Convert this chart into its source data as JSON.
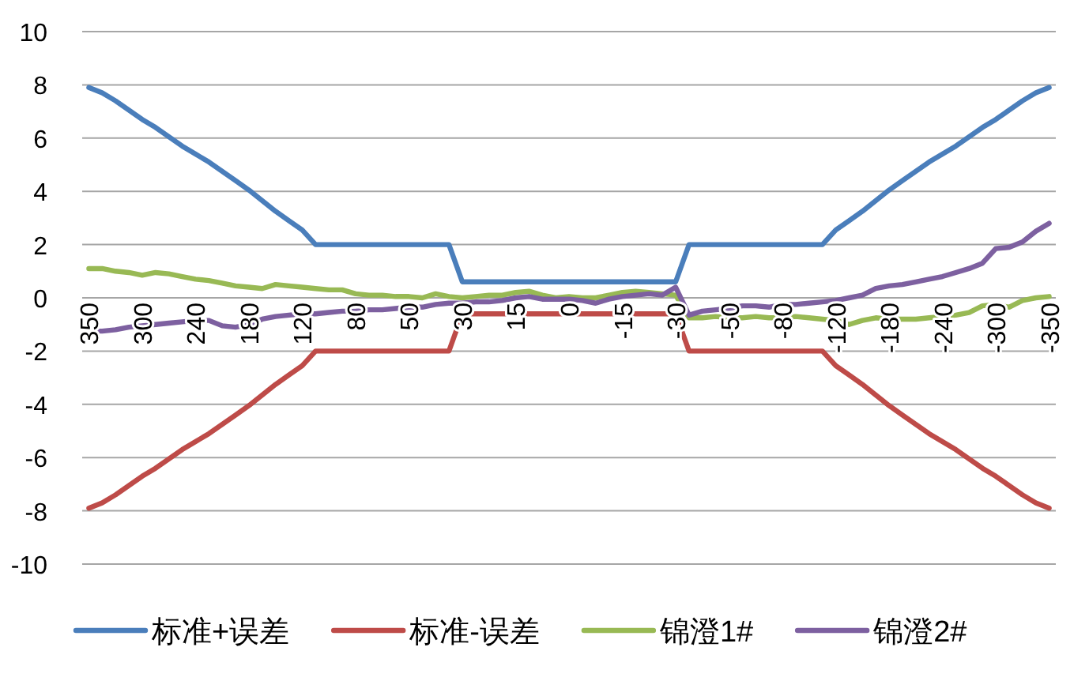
{
  "chart_data": {
    "type": "line",
    "categories": [
      "350",
      null,
      null,
      null,
      "300",
      null,
      null,
      null,
      "240",
      null,
      null,
      null,
      "180",
      null,
      null,
      null,
      "120",
      null,
      null,
      null,
      "80",
      null,
      null,
      null,
      "50",
      null,
      null,
      null,
      "30",
      null,
      null,
      null,
      "15",
      null,
      null,
      null,
      "0",
      null,
      null,
      null,
      "-15",
      null,
      null,
      null,
      "-30",
      null,
      null,
      null,
      "-50",
      null,
      null,
      null,
      "-80",
      null,
      null,
      null,
      "-120",
      null,
      null,
      null,
      "-180",
      null,
      null,
      null,
      "-240",
      null,
      null,
      null,
      "-300",
      null,
      null,
      null,
      "-350"
    ],
    "series": [
      {
        "name": "标准+误差",
        "color": "#4a7ebb",
        "values": [
          7.9,
          7.7,
          7.4,
          7.05,
          6.7,
          6.4,
          6.05,
          5.7,
          5.4,
          5.1,
          4.75,
          4.4,
          4.05,
          3.65,
          3.25,
          2.9,
          2.55,
          2,
          2,
          2,
          2,
          2,
          2,
          2,
          2,
          2,
          2,
          2,
          0.6,
          0.6,
          0.6,
          0.6,
          0.6,
          0.6,
          0.6,
          0.6,
          0.6,
          0.6,
          0.6,
          0.6,
          0.6,
          0.6,
          0.6,
          0.6,
          0.6,
          2,
          2,
          2,
          2,
          2,
          2,
          2,
          2,
          2,
          2,
          2,
          2.55,
          2.9,
          3.25,
          3.65,
          4.05,
          4.4,
          4.75,
          5.1,
          5.4,
          5.7,
          6.05,
          6.4,
          6.7,
          7.05,
          7.4,
          7.7,
          7.9
        ]
      },
      {
        "name": "标准-误差",
        "color": "#be4b48",
        "values": [
          -7.9,
          -7.7,
          -7.4,
          -7.05,
          -6.7,
          -6.4,
          -6.05,
          -5.7,
          -5.4,
          -5.1,
          -4.75,
          -4.4,
          -4.05,
          -3.65,
          -3.25,
          -2.9,
          -2.55,
          -2,
          -2,
          -2,
          -2,
          -2,
          -2,
          -2,
          -2,
          -2,
          -2,
          -2,
          -0.6,
          -0.6,
          -0.6,
          -0.6,
          -0.6,
          -0.6,
          -0.6,
          -0.6,
          -0.6,
          -0.6,
          -0.6,
          -0.6,
          -0.6,
          -0.6,
          -0.6,
          -0.6,
          -0.6,
          -2,
          -2,
          -2,
          -2,
          -2,
          -2,
          -2,
          -2,
          -2,
          -2,
          -2,
          -2.55,
          -2.9,
          -3.25,
          -3.65,
          -4.05,
          -4.4,
          -4.75,
          -5.1,
          -5.4,
          -5.7,
          -6.05,
          -6.4,
          -6.7,
          -7.05,
          -7.4,
          -7.7,
          -7.9
        ]
      },
      {
        "name": "锦澄1#",
        "color": "#98b954",
        "values": [
          1.1,
          1.1,
          1.0,
          0.95,
          0.85,
          0.95,
          0.9,
          0.8,
          0.7,
          0.65,
          0.55,
          0.45,
          0.4,
          0.35,
          0.5,
          0.45,
          0.4,
          0.35,
          0.3,
          0.3,
          0.15,
          0.1,
          0.1,
          0.05,
          0.05,
          0.0,
          0.15,
          0.05,
          0.0,
          0.05,
          0.1,
          0.1,
          0.2,
          0.25,
          0.1,
          0.0,
          0.05,
          0.0,
          0.0,
          0.1,
          0.2,
          0.25,
          0.2,
          0.15,
          0.1,
          -0.75,
          -0.75,
          -0.7,
          -0.75,
          -0.75,
          -0.7,
          -0.75,
          -0.75,
          -0.7,
          -0.75,
          -0.8,
          -0.85,
          -1.0,
          -0.85,
          -0.75,
          -0.8,
          -0.8,
          -0.8,
          -0.75,
          -0.7,
          -0.65,
          -0.55,
          -0.3,
          -0.25,
          -0.35,
          -0.1,
          0.0,
          0.05
        ]
      },
      {
        "name": "锦澄2#",
        "color": "#7d60a0",
        "values": [
          -1.25,
          -1.25,
          -1.2,
          -1.1,
          -1.05,
          -1.0,
          -0.95,
          -0.9,
          -0.85,
          -0.85,
          -1.05,
          -1.1,
          -1.0,
          -0.8,
          -0.7,
          -0.65,
          -0.6,
          -0.6,
          -0.55,
          -0.5,
          -0.5,
          -0.45,
          -0.45,
          -0.4,
          -0.35,
          -0.35,
          -0.25,
          -0.2,
          -0.2,
          -0.15,
          -0.15,
          -0.1,
          0.0,
          0.05,
          -0.05,
          -0.05,
          -0.05,
          -0.1,
          -0.2,
          -0.05,
          0.05,
          0.1,
          0.15,
          0.1,
          0.4,
          -0.65,
          -0.5,
          -0.45,
          -0.4,
          -0.3,
          -0.3,
          -0.35,
          -0.25,
          -0.25,
          -0.2,
          -0.15,
          -0.1,
          0.0,
          0.1,
          0.35,
          0.45,
          0.5,
          0.6,
          0.7,
          0.8,
          0.95,
          1.1,
          1.3,
          1.85,
          1.9,
          2.1,
          2.5,
          2.8
        ]
      }
    ],
    "ylim": [
      -10,
      10
    ],
    "yticks": [
      -10,
      -8,
      -6,
      -4,
      -2,
      0,
      2,
      4,
      6,
      8,
      10
    ],
    "grid": "y",
    "legend": "bottom",
    "marker": "none",
    "line_style": "solid"
  }
}
